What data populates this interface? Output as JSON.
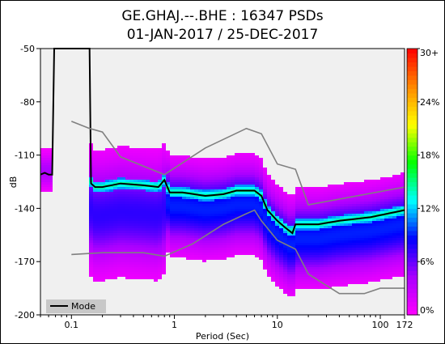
{
  "chart_data": {
    "type": "heatmap",
    "title": "GE.GHAJ.--.BHE : 16347 PSDs",
    "subtitle": "01-JAN-2017 / 25-DEC-2017",
    "xlabel": "Period (Sec)",
    "ylabel": "dB",
    "x_scale": "log",
    "xlim": [
      0.05,
      172
    ],
    "ylim": [
      -200,
      -50
    ],
    "x_ticks": [
      {
        "value": 0.1,
        "label": "0.1"
      },
      {
        "value": 1,
        "label": "1"
      },
      {
        "value": 10,
        "label": "10"
      },
      {
        "value": 100,
        "label": "100"
      },
      {
        "value": 172,
        "label": "172"
      }
    ],
    "y_ticks": [
      {
        "value": -50,
        "label": "-50"
      },
      {
        "value": -80,
        "label": "-80"
      },
      {
        "value": -110,
        "label": "-110"
      },
      {
        "value": -140,
        "label": "-140"
      },
      {
        "value": -170,
        "label": "-170"
      },
      {
        "value": -200,
        "label": "-200"
      }
    ],
    "colorbar": {
      "range": [
        0,
        30
      ],
      "ticks": [
        {
          "value": 0,
          "label": "0%"
        },
        {
          "value": 6,
          "label": "6%"
        },
        {
          "value": 12,
          "label": "12%"
        },
        {
          "value": 18,
          "label": "18%"
        },
        {
          "value": 24,
          "label": "24%"
        },
        {
          "value": 30,
          "label": "30+"
        }
      ],
      "colors": [
        "#ff00ff",
        "#aa00ff",
        "#0000ff",
        "#00ffff",
        "#00ff00",
        "#ffff00",
        "#ff8800",
        "#ff0000"
      ]
    },
    "legend": {
      "position": "bottom-left",
      "entries": [
        "Mode"
      ]
    },
    "series": [
      {
        "name": "Mode",
        "color": "#000000",
        "points": [
          [
            0.05,
            -121
          ],
          [
            0.055,
            -120
          ],
          [
            0.06,
            -121
          ],
          [
            0.065,
            -121
          ],
          [
            0.068,
            -50
          ],
          [
            0.15,
            -50
          ],
          [
            0.155,
            -126
          ],
          [
            0.17,
            -128
          ],
          [
            0.2,
            -128
          ],
          [
            0.3,
            -126
          ],
          [
            0.5,
            -127
          ],
          [
            0.7,
            -128
          ],
          [
            0.8,
            -124
          ],
          [
            0.9,
            -131
          ],
          [
            1.2,
            -131
          ],
          [
            2,
            -133
          ],
          [
            3,
            -132
          ],
          [
            4,
            -130
          ],
          [
            6,
            -130
          ],
          [
            7,
            -133
          ],
          [
            8,
            -141
          ],
          [
            10,
            -147
          ],
          [
            12,
            -151
          ],
          [
            14,
            -154
          ],
          [
            15,
            -149
          ],
          [
            18,
            -149
          ],
          [
            25,
            -149
          ],
          [
            40,
            -147
          ],
          [
            80,
            -145
          ],
          [
            172,
            -141
          ]
        ]
      },
      {
        "color": "#808080",
        "points": [
          [
            0.1,
            -91
          ],
          [
            0.15,
            -95
          ],
          [
            0.2,
            -97
          ],
          [
            0.3,
            -111
          ],
          [
            0.8,
            -121
          ],
          [
            2,
            -106
          ],
          [
            5,
            -95
          ],
          [
            7,
            -98
          ],
          [
            10,
            -115
          ],
          [
            15,
            -118
          ],
          [
            20,
            -138
          ],
          [
            172,
            -128
          ]
        ]
      },
      {
        "color": "#808080",
        "points": [
          [
            0.1,
            -166
          ],
          [
            0.2,
            -165
          ],
          [
            0.5,
            -165
          ],
          [
            0.8,
            -167
          ],
          [
            1.5,
            -160
          ],
          [
            3,
            -149
          ],
          [
            5,
            -143
          ],
          [
            6,
            -141
          ],
          [
            7,
            -147
          ],
          [
            10,
            -158
          ],
          [
            15,
            -163
          ],
          [
            20,
            -177
          ],
          [
            40,
            -188
          ],
          [
            70,
            -188
          ],
          [
            100,
            -185
          ],
          [
            172,
            -185
          ]
        ]
      }
    ],
    "density_model": {
      "bands": [
        {
          "x": [
            0.05,
            0.068
          ],
          "center": -119,
          "spread": 6,
          "peak": 0.25
        },
        {
          "x": [
            0.15,
            0.8
          ],
          "center_from_mode": true,
          "offset": 16,
          "spread": 18,
          "peak": 0.45
        },
        {
          "x": [
            0.8,
            172
          ],
          "center_from_mode": true,
          "offset": 8,
          "spread": 14,
          "peak": 0.55
        }
      ]
    }
  }
}
